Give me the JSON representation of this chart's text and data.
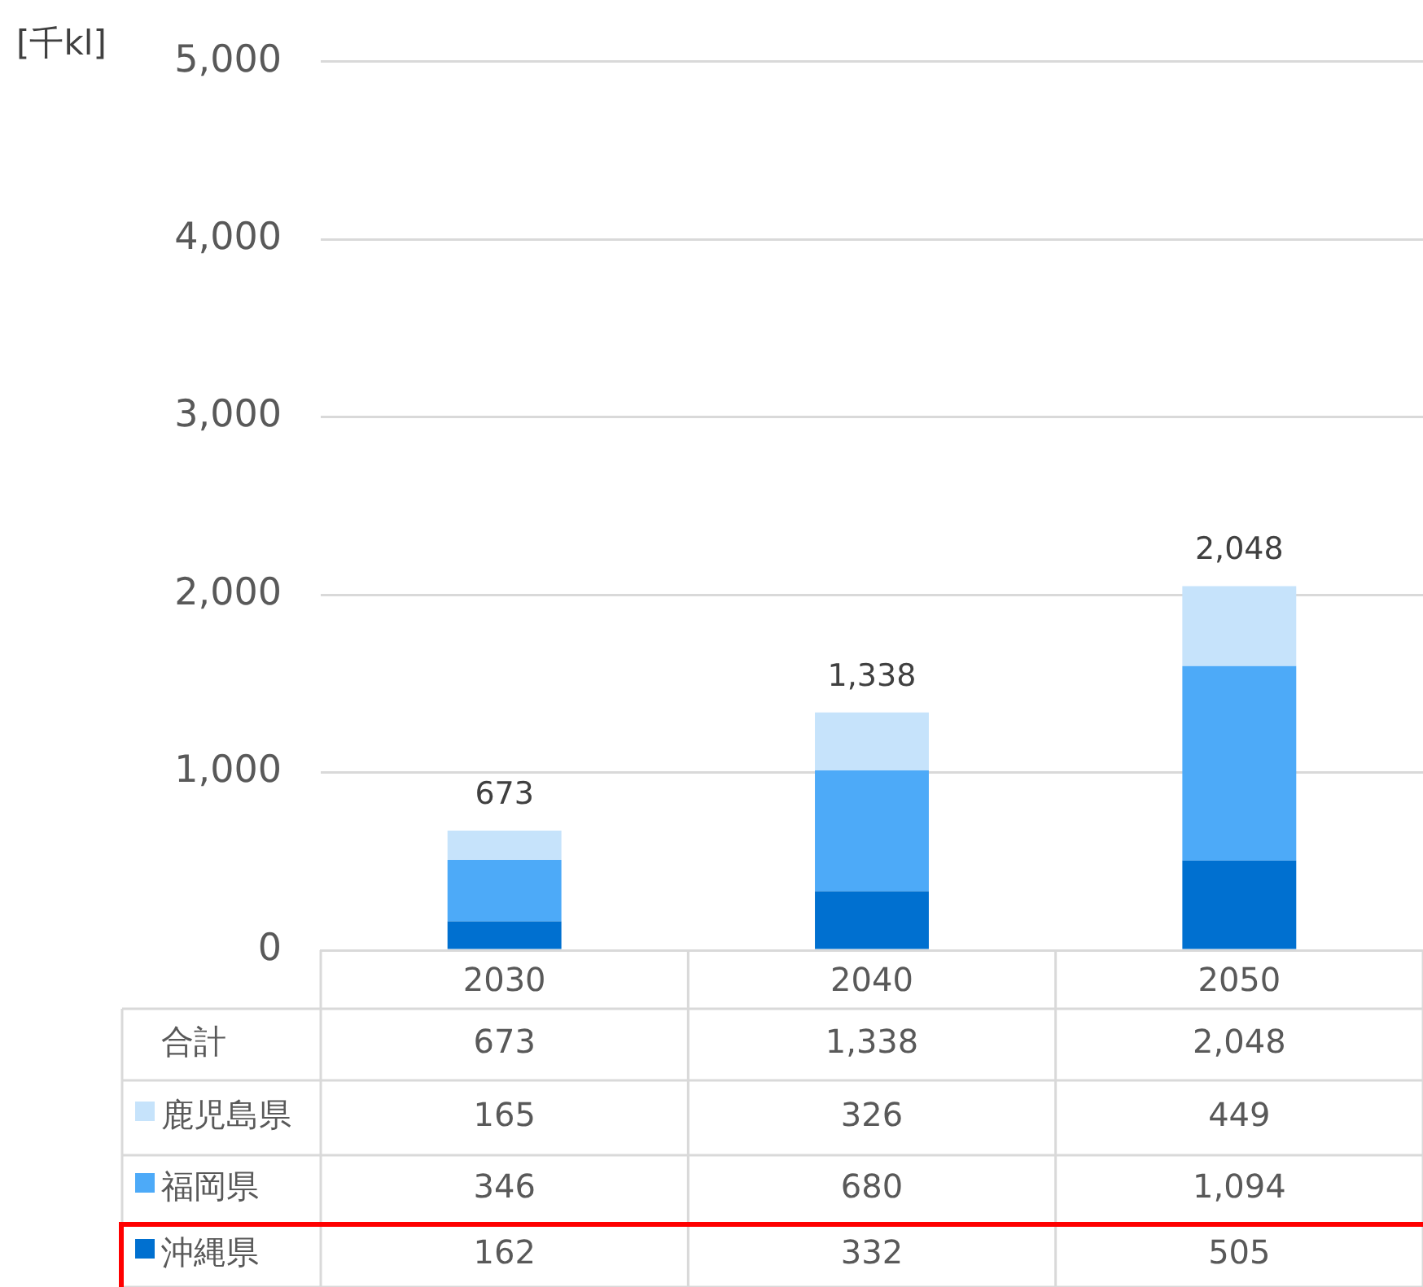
{
  "chart_data": {
    "type": "bar",
    "stacked": true,
    "ylabel": "[千kl]",
    "categories": [
      "2030",
      "2040",
      "2050"
    ],
    "series": [
      {
        "name": "沖縄県",
        "color": "#0070d0",
        "values": [
          162,
          332,
          505
        ],
        "value_labels": [
          "162",
          "332",
          "505"
        ]
      },
      {
        "name": "福岡県",
        "color": "#4daaf8",
        "values": [
          346,
          680,
          1094
        ],
        "value_labels": [
          "346",
          "680",
          "1,094"
        ]
      },
      {
        "name": "鹿児島県",
        "color": "#c6e3fb",
        "values": [
          165,
          326,
          449
        ],
        "value_labels": [
          "165",
          "326",
          "449"
        ]
      }
    ],
    "totals": [
      "673",
      "1,338",
      "2,048"
    ],
    "annotations": [
      "合計"
    ],
    "ylim": [
      0,
      5000
    ],
    "yticks": [
      0,
      {
        "value": 1000,
        "label": "1,000"
      },
      {
        "value": 2000,
        "label": "2,000"
      },
      {
        "value": 3000,
        "label": "3,000"
      },
      {
        "value": 4000,
        "label": "4,000"
      },
      {
        "value": 5000,
        "label": "5,000"
      }
    ],
    "grid": "y",
    "legend": "bottom"
  }
}
